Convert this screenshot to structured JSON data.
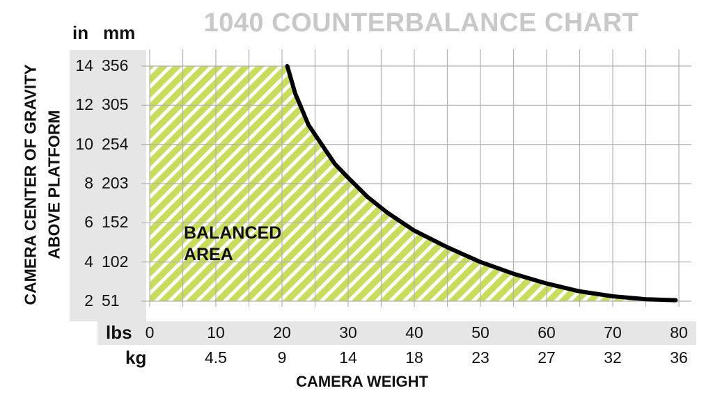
{
  "chart_data": {
    "type": "area",
    "title": "1040 COUNTERBALANCE CHART",
    "xlabel": "CAMERA WEIGHT",
    "ylabel_lines": [
      "CAMERA CENTER OF GRAVITY",
      "ABOVE PLATFORM"
    ],
    "y_units": [
      "in",
      "mm"
    ],
    "x_units": [
      "lbs",
      "kg"
    ],
    "y_ticks_in": [
      "14",
      "12",
      "10",
      "8",
      "6",
      "4",
      "2"
    ],
    "y_ticks_mm": [
      "356",
      "305",
      "254",
      "203",
      "152",
      "102",
      "51"
    ],
    "y_tick_values": [
      14,
      12,
      10,
      8,
      6,
      4,
      2
    ],
    "x_ticks_lbs": [
      "0",
      "10",
      "20",
      "30",
      "40",
      "50",
      "60",
      "70",
      "80"
    ],
    "x_ticks_kg": [
      "",
      "4.5",
      "9",
      "14",
      "18",
      "23",
      "27",
      "32",
      "36"
    ],
    "x_tick_values": [
      0,
      10,
      20,
      30,
      40,
      50,
      60,
      70,
      80
    ],
    "xlim": [
      0,
      80
    ],
    "ylim": [
      2,
      14
    ],
    "grid": true,
    "annotation_lines": [
      "BALANCED",
      "AREA"
    ],
    "boundary": {
      "x": [
        20.8,
        22,
        24,
        25.2,
        28,
        30,
        33,
        36,
        40,
        45,
        50,
        55,
        60,
        65,
        70,
        75,
        79.5
      ],
      "y": [
        14,
        12.6,
        11,
        10.4,
        9,
        8.3,
        7.3,
        6.5,
        5.6,
        4.75,
        4.0,
        3.4,
        2.9,
        2.5,
        2.25,
        2.1,
        2.05
      ]
    },
    "colors": {
      "fill": "#c9dc5c",
      "stripe": "#ffffff",
      "grid": "#b0b0b0",
      "curve": "#000000",
      "title": "#c8c8c8",
      "band": "#e6e6e6"
    }
  }
}
